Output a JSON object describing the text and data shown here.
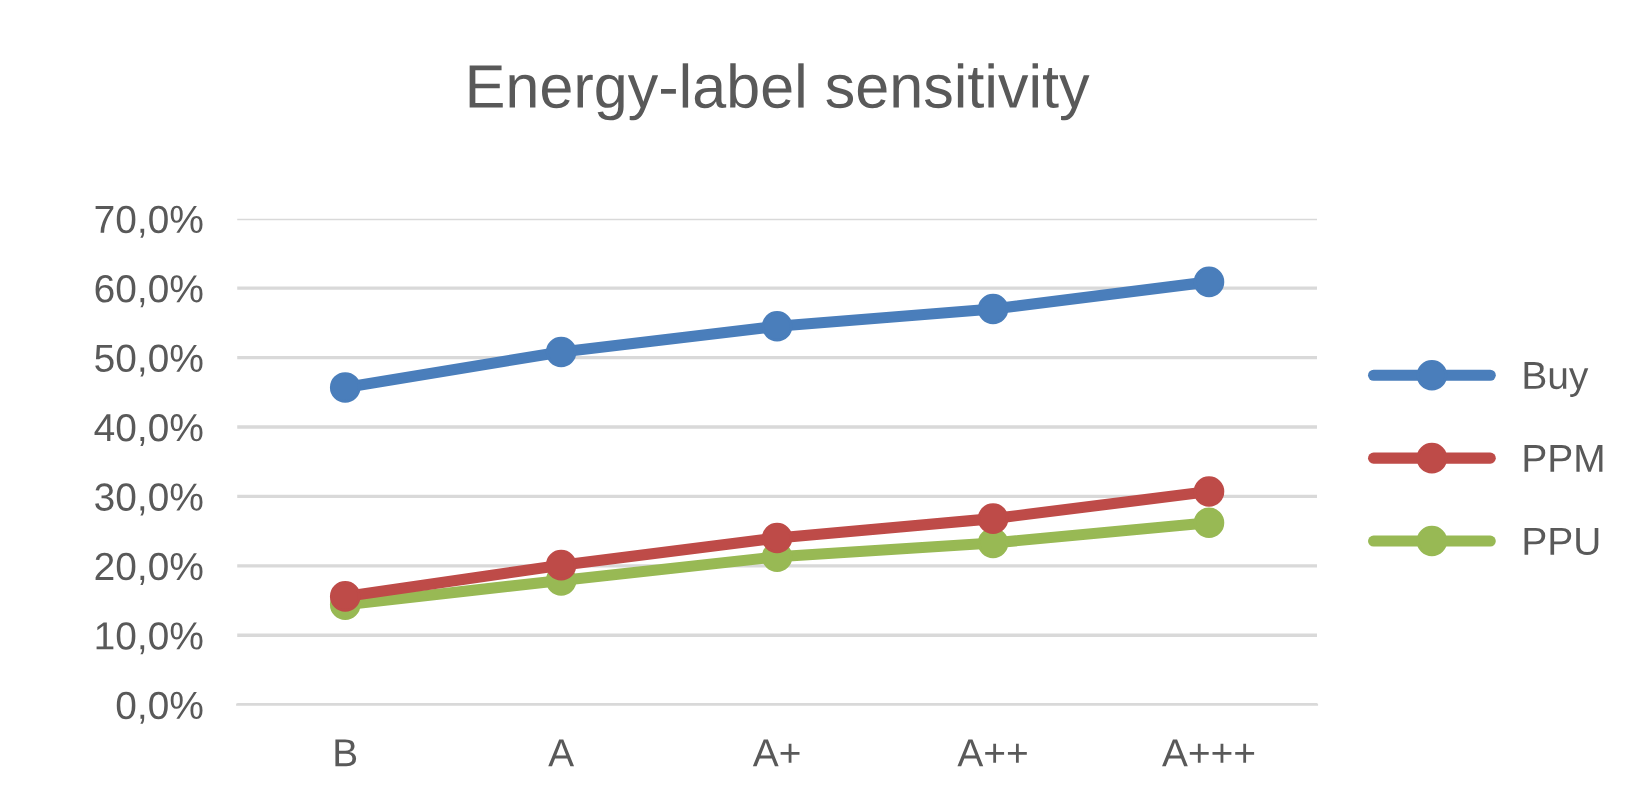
{
  "chart_data": {
    "type": "line",
    "title": "Energy-label sensitivity",
    "categories": [
      "B",
      "A",
      "A+",
      "A++",
      "A+++"
    ],
    "series": [
      {
        "name": "Buy",
        "color": "#4a7ebb",
        "values": [
          45.7,
          50.8,
          54.5,
          57.0,
          60.9
        ]
      },
      {
        "name": "PPM",
        "color": "#be4b48",
        "values": [
          15.6,
          20.1,
          24.0,
          26.8,
          30.7
        ]
      },
      {
        "name": "PPU",
        "color": "#98b954",
        "values": [
          14.4,
          17.9,
          21.3,
          23.3,
          26.2
        ]
      }
    ],
    "ylim": [
      0,
      70
    ],
    "yticks": [
      {
        "value": 0,
        "label": "0,0%"
      },
      {
        "value": 10,
        "label": "10,0%"
      },
      {
        "value": 20,
        "label": "20,0%"
      },
      {
        "value": 30,
        "label": "30,0%"
      },
      {
        "value": 40,
        "label": "40,0%"
      },
      {
        "value": 50,
        "label": "50,0%"
      },
      {
        "value": 60,
        "label": "60,0%"
      },
      {
        "value": 70,
        "label": "70,0%"
      }
    ],
    "grid": "y",
    "legend": "right",
    "marker": "circle",
    "line_style": "solid"
  }
}
